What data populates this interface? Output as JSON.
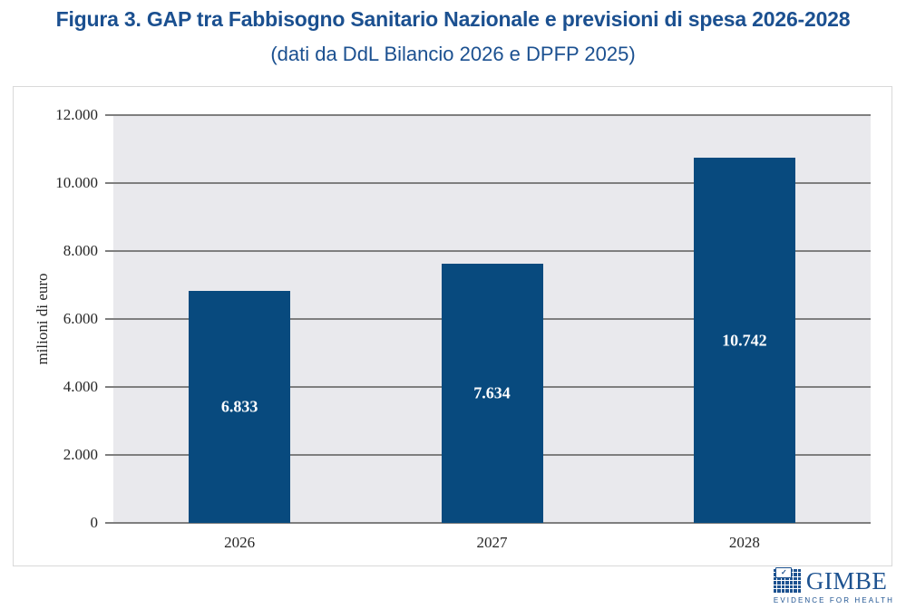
{
  "title": "Figura 3. GAP tra Fabbisogno Sanitario Nazionale e previsioni di spesa 2026-2028",
  "subtitle": "(dati da DdL Bilancio 2026 e DPFP 2025)",
  "chart_data": {
    "type": "bar",
    "categories": [
      "2026",
      "2027",
      "2028"
    ],
    "values": [
      6833,
      7634,
      10742
    ],
    "value_labels": [
      "6.833",
      "7.634",
      "10.742"
    ],
    "series_name": "GAP tra Fabbisogno Sanitario Nazionale e previsioni di spesa",
    "xlabel": "",
    "ylabel": "milioni di euro",
    "yticks": [
      "12.000",
      "10.000",
      "8.000",
      "6.000",
      "4.000",
      "2.000",
      "0"
    ],
    "ylim": [
      0,
      12000
    ],
    "grid": "horizontal",
    "legend": "none",
    "bar_color": "#084a7e",
    "value_label_color": "#ffffff",
    "plot_background": "#e9e9ed",
    "gridline_color": "#7f7f7f"
  },
  "colors": {
    "title_blue": "#1b5090",
    "logo_blue": "#1d5290",
    "axis_text": "#262626",
    "chart_box_border": "#d9d9d9"
  },
  "footer": {
    "brand": "GIMBE",
    "tagline": "EVIDENCE FOR HEALTH",
    "check_glyph": "✓"
  }
}
